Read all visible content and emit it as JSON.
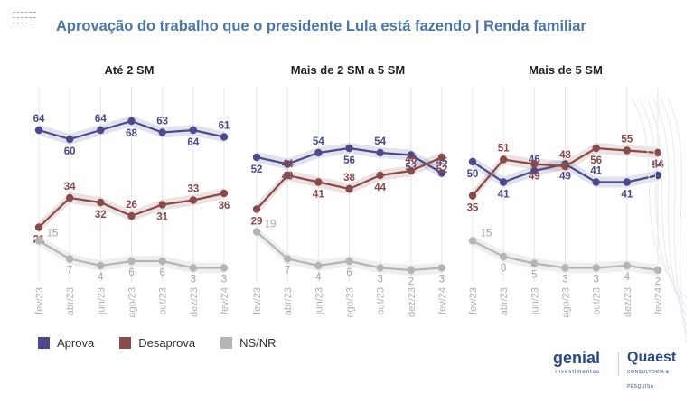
{
  "title": "Aprovação do trabalho que o presidente Lula está fazendo | Renda familiar",
  "legend": [
    {
      "label": "Aprova",
      "color": "#4a4a8c"
    },
    {
      "label": "Desaprova",
      "color": "#8a4a48"
    },
    {
      "label": "NS/NR",
      "color": "#b8b4b4"
    }
  ],
  "logos": {
    "genial": "genial",
    "genial_sub": "investimentos",
    "quaest": "Quaest",
    "quaest_sub": "CONSULTORIA & PESQUISA"
  },
  "chart_data": [
    {
      "type": "line",
      "title": "Até 2 SM",
      "x": [
        "fev/23",
        "abr/23",
        "jun/23",
        "ago/23",
        "out/23",
        "dez/23",
        "fev/24"
      ],
      "ylim": [
        0,
        80
      ],
      "series": [
        {
          "name": "Aprova",
          "values": [
            64,
            60,
            64,
            68,
            63,
            64,
            61
          ]
        },
        {
          "name": "Desaprova",
          "values": [
            21,
            34,
            32,
            26,
            31,
            33,
            36
          ]
        },
        {
          "name": "NS/NR",
          "values": [
            15,
            7,
            4,
            6,
            6,
            3,
            3
          ]
        }
      ]
    },
    {
      "type": "line",
      "title": "Mais de 2 SM a 5 SM",
      "x": [
        "fev/23",
        "abr/23",
        "jun/23",
        "ago/23",
        "out/23",
        "dez/23",
        "fev/24"
      ],
      "ylim": [
        0,
        80
      ],
      "series": [
        {
          "name": "Aprova",
          "values": [
            52,
            49,
            54,
            56,
            54,
            53,
            45
          ]
        },
        {
          "name": "Desaprova",
          "values": [
            29,
            44,
            41,
            38,
            44,
            46,
            52
          ]
        },
        {
          "name": "NS/NR",
          "values": [
            19,
            7,
            4,
            6,
            3,
            2,
            3
          ]
        }
      ]
    },
    {
      "type": "line",
      "title": "Mais de 5 SM",
      "x": [
        "fev/23",
        "abr/23",
        "jun/23",
        "ago/23",
        "out/23",
        "dez/23",
        "fev/24"
      ],
      "ylim": [
        0,
        80
      ],
      "series": [
        {
          "name": "Aprova",
          "values": [
            50,
            41,
            46,
            49,
            41,
            41,
            44
          ]
        },
        {
          "name": "Desaprova",
          "values": [
            35,
            51,
            49,
            48,
            56,
            55,
            54
          ]
        },
        {
          "name": "NS/NR",
          "values": [
            15,
            8,
            5,
            3,
            3,
            4,
            2
          ]
        }
      ]
    }
  ]
}
